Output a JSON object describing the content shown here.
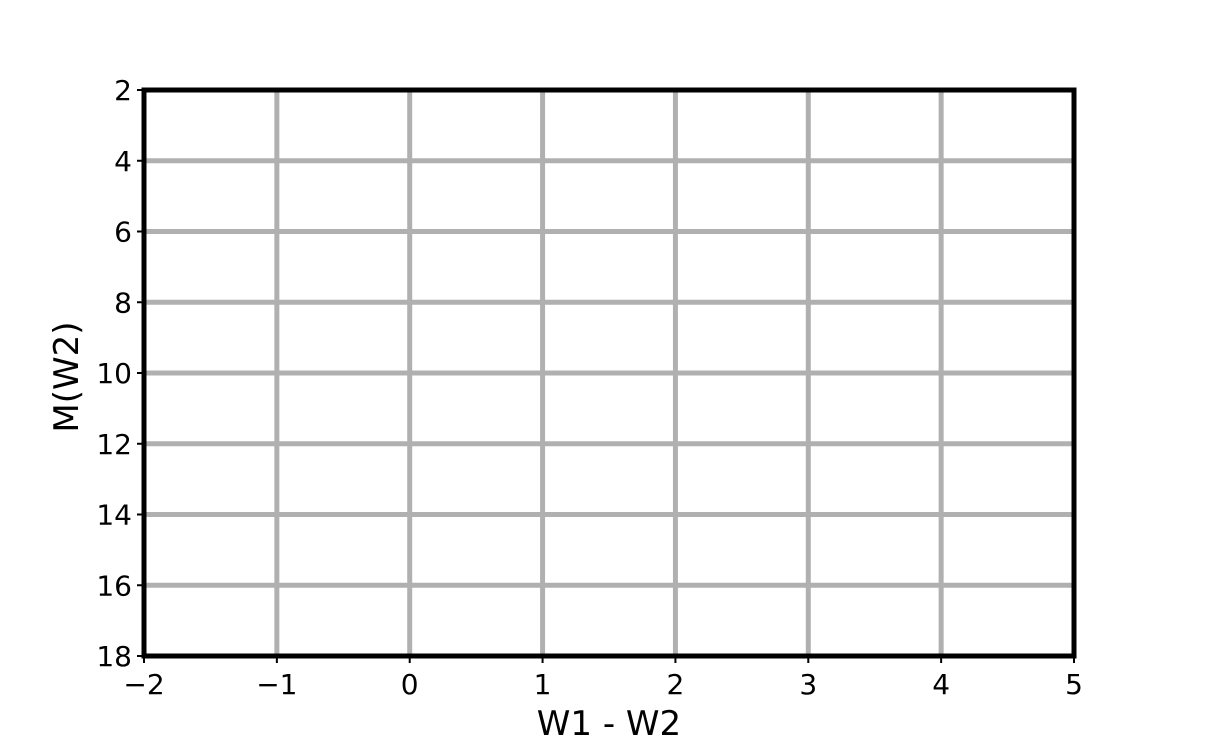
{
  "chart_data": {
    "type": "scatter",
    "title": "",
    "xlabel": "W1 - W2",
    "ylabel": "M(W2)",
    "xlim": [
      -2,
      5
    ],
    "ylim": [
      18,
      2
    ],
    "y_inverted": true,
    "xticks": [
      -2,
      -1,
      0,
      1,
      2,
      3,
      4,
      5
    ],
    "xtick_labels": [
      "−2",
      "−1",
      "0",
      "1",
      "2",
      "3",
      "4",
      "5"
    ],
    "yticks": [
      2,
      4,
      6,
      8,
      10,
      12,
      14,
      16,
      18
    ],
    "ytick_labels": [
      "2",
      "4",
      "6",
      "8",
      "10",
      "12",
      "14",
      "16",
      "18"
    ],
    "grid": true,
    "series": [],
    "colors": {
      "grid": "#b0b0b0",
      "frame": "#000000",
      "background": "#ffffff"
    }
  }
}
